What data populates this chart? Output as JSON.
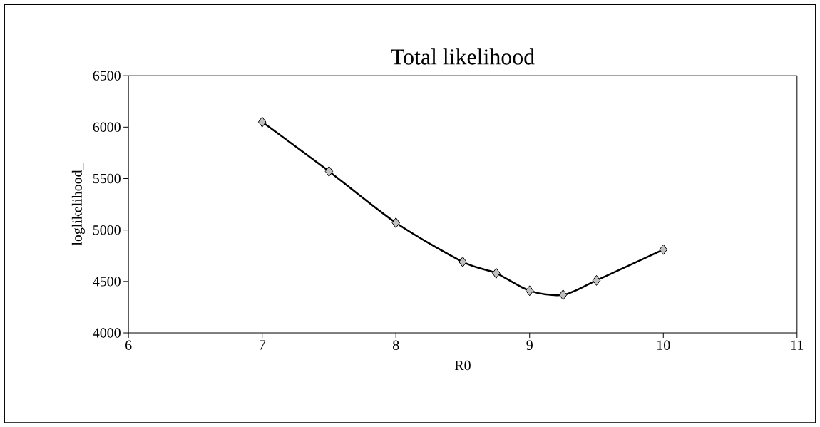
{
  "chart_data": {
    "type": "line",
    "title": "Total likelihood",
    "xlabel": "R0",
    "ylabel": "loglikelihood_",
    "x": [
      7,
      7.5,
      8,
      8.5,
      8.75,
      9,
      9.25,
      9.5,
      10
    ],
    "series": [
      {
        "color": "#000000",
        "values": [
          6050,
          5570,
          5070,
          4690,
          4580,
          4410,
          4370,
          4510,
          4810
        ]
      }
    ],
    "xlim": [
      6,
      11
    ],
    "xticks": [
      6,
      7,
      8,
      9,
      10,
      11
    ],
    "ylim": [
      4000,
      6500
    ],
    "yticks": [
      4000,
      4500,
      5000,
      5500,
      6000,
      6500
    ],
    "marker": "diamond",
    "line_style": "solid",
    "grid": false
  }
}
